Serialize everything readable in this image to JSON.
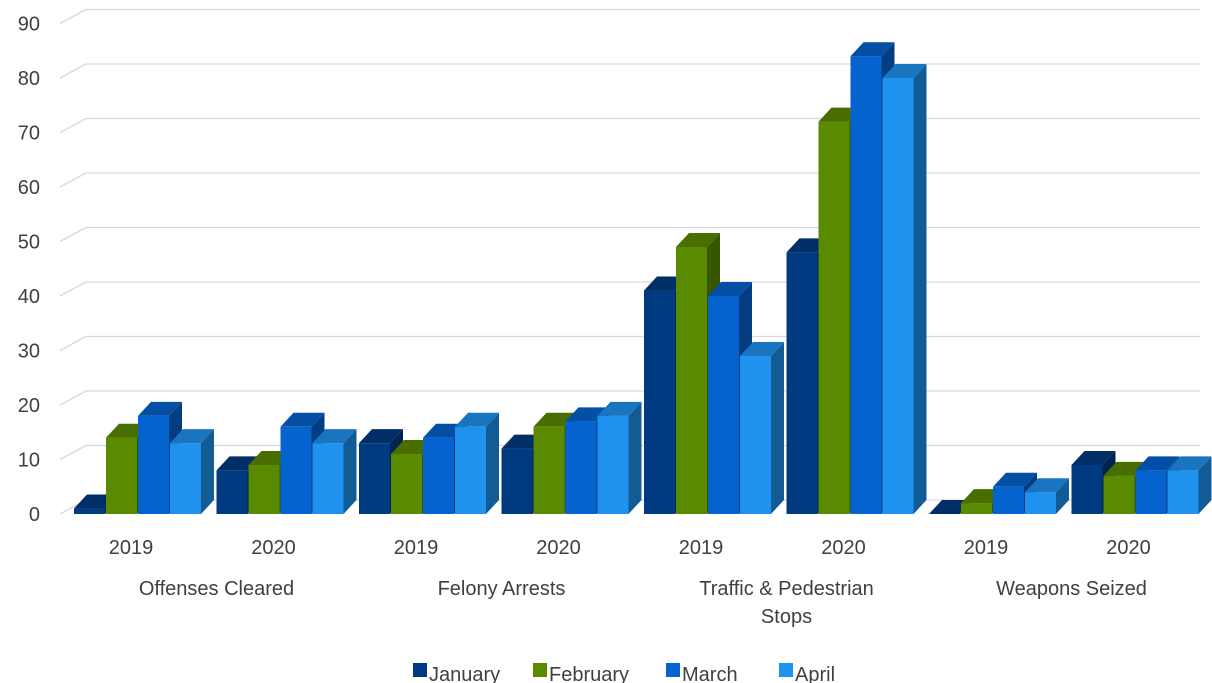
{
  "chart_data": {
    "type": "bar",
    "variant": "3d-clustered-column",
    "groups": [
      {
        "label": "Offenses Cleared",
        "categories": [
          "2019",
          "2020"
        ]
      },
      {
        "label": "Felony Arrests",
        "categories": [
          "2019",
          "2020"
        ]
      },
      {
        "label": "Traffic & Pedestrian Stops",
        "label_lines": [
          "Traffic & Pedestrian",
          "Stops"
        ],
        "categories": [
          "2019",
          "2020"
        ]
      },
      {
        "label": "Weapons Seized",
        "categories": [
          "2019",
          "2020"
        ]
      }
    ],
    "series": [
      {
        "name": "January",
        "color": "#003A80",
        "values": [
          1,
          8,
          13,
          12,
          41,
          48,
          0,
          9
        ]
      },
      {
        "name": "February",
        "color": "#5A8A00",
        "values": [
          14,
          9,
          11,
          16,
          49,
          72,
          2,
          7
        ]
      },
      {
        "name": "March",
        "color": "#0563D0",
        "values": [
          18,
          16,
          14,
          17,
          40,
          84,
          5,
          8
        ]
      },
      {
        "name": "April",
        "color": "#1F92F0",
        "values": [
          13,
          13,
          16,
          18,
          29,
          80,
          4,
          8
        ]
      }
    ],
    "ylim": [
      0,
      90
    ],
    "yticks": [
      0,
      10,
      20,
      30,
      40,
      50,
      60,
      70,
      80,
      90
    ],
    "grid": true,
    "legend_position": "bottom",
    "title": "",
    "xlabel": "",
    "ylabel": ""
  }
}
